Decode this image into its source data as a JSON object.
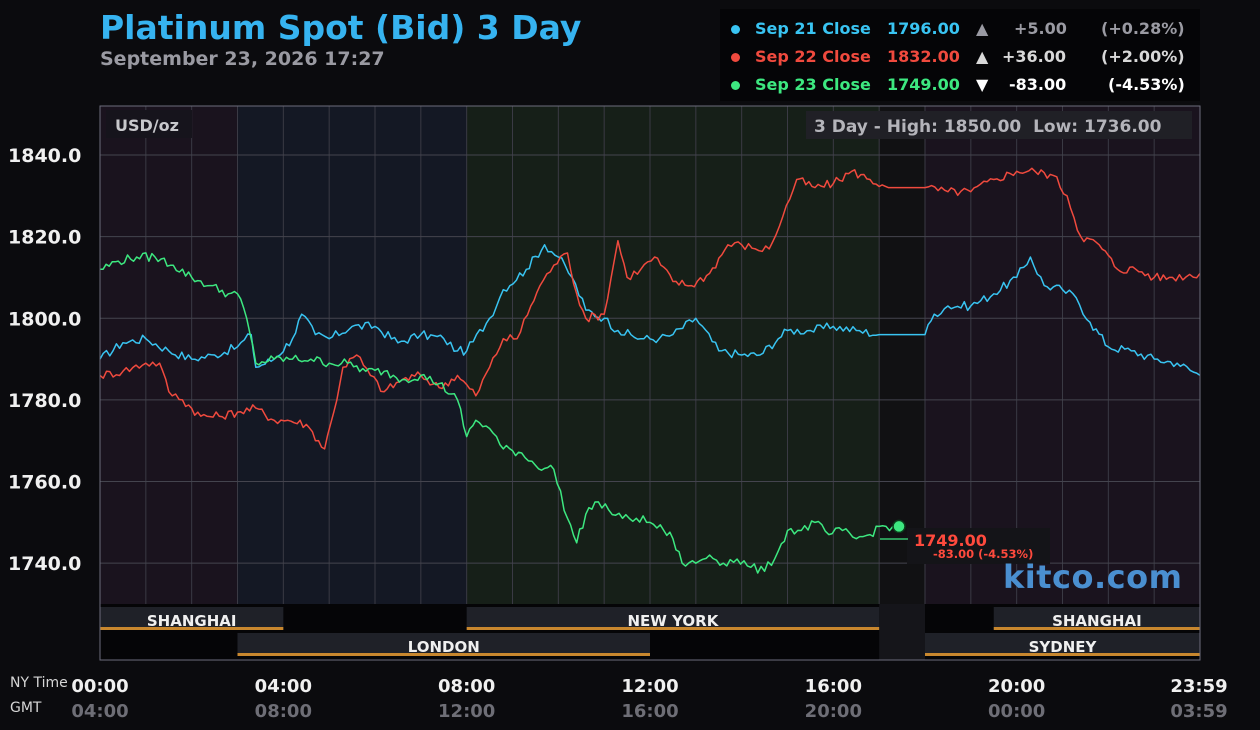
{
  "header": {
    "title": "Platinum Spot (Bid) 3 Day",
    "subtitle": "September 23, 2026 17:27"
  },
  "legend": [
    {
      "label": "Sep 21 Close",
      "value": "1796.00",
      "arrow": "▲",
      "change": "+5.00",
      "percent": "(+0.28%)",
      "color": "#39c4f2",
      "arrow_color": "#9a9aa2",
      "change_color": "#9a9aa2"
    },
    {
      "label": "Sep 22 Close",
      "value": "1832.00",
      "arrow": "▲",
      "change": "+36.00",
      "percent": "(+2.00%)",
      "color": "#f04a3e",
      "arrow_color": "#d8d8d8",
      "change_color": "#d8d8d8"
    },
    {
      "label": "Sep 23 Close",
      "value": "1749.00",
      "arrow": "▼",
      "change": "-83.00",
      "percent": "(-4.53%)",
      "color": "#3de880",
      "arrow_color": "#ffffff",
      "change_color": "#ffffff"
    }
  ],
  "unit_label": "USD/oz",
  "high_low": "3 Day - High: 1850.00  Low: 1736.00",
  "last_price": {
    "value": "1749.00",
    "change": "-83.00 (-4.53%)",
    "color": "#ff4a3d"
  },
  "sessions": [
    {
      "name": "SHANGHAI",
      "start": 0,
      "end": 4,
      "row": 1
    },
    {
      "name": "NEW YORK",
      "start": 8,
      "end": 17,
      "row": 1
    },
    {
      "name": "SHANGHAI",
      "start": 19.5,
      "end": 24,
      "row": 1
    },
    {
      "name": "LONDON",
      "start": 3,
      "end": 12,
      "row": 2
    },
    {
      "name": "SYDNEY",
      "start": 18,
      "end": 24,
      "row": 2
    }
  ],
  "time_axis": {
    "ny_label": "NY Time",
    "gmt_label": "GMT",
    "ny_ticks": [
      "00:00",
      "04:00",
      "08:00",
      "12:00",
      "16:00",
      "20:00",
      "23:59"
    ],
    "gmt_ticks": [
      "04:00",
      "08:00",
      "12:00",
      "16:00",
      "20:00",
      "00:00",
      "03:59"
    ]
  },
  "logo": "kitco.com",
  "chart_data": {
    "type": "line",
    "title": "Platinum Spot (Bid) 3 Day",
    "ylabel": "USD/oz",
    "xlabel": "NY Time",
    "ylim": [
      1730,
      1852
    ],
    "xlim": [
      0,
      24
    ],
    "y_ticks": [
      1740,
      1760,
      1780,
      1800,
      1820,
      1840
    ],
    "y_tick_labels": [
      "1740.0",
      "1760.0",
      "1780.0",
      "1800.0",
      "1820.0",
      "1840.0"
    ],
    "grid": true,
    "series": [
      {
        "name": "Sep 21",
        "color": "#39c4f2",
        "points": [
          [
            0,
            1790
          ],
          [
            0.5,
            1794
          ],
          [
            1,
            1795
          ],
          [
            1.5,
            1792
          ],
          [
            2,
            1790
          ],
          [
            2.5,
            1791
          ],
          [
            3,
            1793
          ],
          [
            3.3,
            1796
          ],
          [
            3.4,
            1788
          ],
          [
            3.8,
            1790
          ],
          [
            4.2,
            1795
          ],
          [
            4.4,
            1801
          ],
          [
            4.7,
            1796
          ],
          [
            5,
            1795
          ],
          [
            5.5,
            1798
          ],
          [
            6,
            1798
          ],
          [
            6.5,
            1794
          ],
          [
            7,
            1796
          ],
          [
            7.5,
            1795
          ],
          [
            7.8,
            1792
          ],
          [
            8,
            1792
          ],
          [
            8.5,
            1800
          ],
          [
            8.8,
            1807
          ],
          [
            9.3,
            1812
          ],
          [
            9.7,
            1818
          ],
          [
            10,
            1815
          ],
          [
            10.3,
            1810
          ],
          [
            10.6,
            1802
          ],
          [
            11,
            1800
          ],
          [
            11.3,
            1797
          ],
          [
            11.8,
            1795
          ],
          [
            12.2,
            1795
          ],
          [
            12.5,
            1796
          ],
          [
            13,
            1800
          ],
          [
            13.5,
            1792
          ],
          [
            14,
            1791
          ],
          [
            14.4,
            1791
          ],
          [
            14.8,
            1795
          ],
          [
            15,
            1797
          ],
          [
            15.5,
            1797
          ],
          [
            16,
            1798
          ],
          [
            16.5,
            1797
          ],
          [
            17,
            1796
          ],
          [
            18,
            1796
          ],
          [
            18.2,
            1801
          ],
          [
            18.5,
            1803
          ],
          [
            19,
            1803
          ],
          [
            19.5,
            1806
          ],
          [
            20,
            1810
          ],
          [
            20.3,
            1815
          ],
          [
            20.6,
            1808
          ],
          [
            21,
            1807
          ],
          [
            21.3,
            1805
          ],
          [
            21.6,
            1799
          ],
          [
            22,
            1793
          ],
          [
            22.5,
            1792
          ],
          [
            23,
            1790
          ],
          [
            23.5,
            1789
          ],
          [
            24,
            1786
          ]
        ]
      },
      {
        "name": "Sep 22",
        "color": "#f04a3e",
        "points": [
          [
            0,
            1786
          ],
          [
            0.5,
            1787
          ],
          [
            1,
            1789
          ],
          [
            1.3,
            1789
          ],
          [
            1.5,
            1782
          ],
          [
            1.8,
            1780
          ],
          [
            2.2,
            1776
          ],
          [
            2.6,
            1776
          ],
          [
            3,
            1777
          ],
          [
            3.4,
            1778
          ],
          [
            3.8,
            1775
          ],
          [
            4.1,
            1775
          ],
          [
            4.5,
            1774
          ],
          [
            4.9,
            1768
          ],
          [
            5.1,
            1777
          ],
          [
            5.3,
            1788
          ],
          [
            5.6,
            1791
          ],
          [
            5.9,
            1786
          ],
          [
            6.2,
            1782
          ],
          [
            6.6,
            1785
          ],
          [
            7,
            1786
          ],
          [
            7.4,
            1783
          ],
          [
            7.8,
            1786
          ],
          [
            8.2,
            1781
          ],
          [
            8.5,
            1788
          ],
          [
            8.8,
            1795
          ],
          [
            9.1,
            1795
          ],
          [
            9.4,
            1803
          ],
          [
            9.6,
            1808
          ],
          [
            9.9,
            1813
          ],
          [
            10.2,
            1816
          ],
          [
            10.4,
            1806
          ],
          [
            10.6,
            1800
          ],
          [
            11,
            1801
          ],
          [
            11.3,
            1819
          ],
          [
            11.5,
            1810
          ],
          [
            11.8,
            1812
          ],
          [
            12.1,
            1815
          ],
          [
            12.5,
            1809
          ],
          [
            12.9,
            1808
          ],
          [
            13.3,
            1811
          ],
          [
            13.7,
            1818
          ],
          [
            14,
            1818
          ],
          [
            14.3,
            1817
          ],
          [
            14.6,
            1817
          ],
          [
            14.9,
            1825
          ],
          [
            15.2,
            1834
          ],
          [
            15.6,
            1832
          ],
          [
            16,
            1833
          ],
          [
            16.4,
            1836
          ],
          [
            16.8,
            1834
          ],
          [
            17.2,
            1832
          ],
          [
            17.6,
            1832
          ],
          [
            18,
            1832
          ],
          [
            18.5,
            1831
          ],
          [
            19,
            1831
          ],
          [
            19.5,
            1834
          ],
          [
            20,
            1836
          ],
          [
            20.4,
            1836
          ],
          [
            20.8,
            1835
          ],
          [
            21.1,
            1830
          ],
          [
            21.4,
            1820
          ],
          [
            21.8,
            1818
          ],
          [
            22.2,
            1812
          ],
          [
            22.6,
            1812
          ],
          [
            23,
            1810
          ],
          [
            23.4,
            1810
          ],
          [
            24,
            1811
          ]
        ]
      },
      {
        "name": "Sep 23",
        "color": "#3de880",
        "points": [
          [
            0,
            1812
          ],
          [
            0.4,
            1814
          ],
          [
            0.8,
            1815
          ],
          [
            1.2,
            1815
          ],
          [
            1.6,
            1813
          ],
          [
            2,
            1810
          ],
          [
            2.4,
            1808
          ],
          [
            2.8,
            1806
          ],
          [
            3,
            1806
          ],
          [
            3.2,
            1800
          ],
          [
            3.4,
            1789
          ],
          [
            3.8,
            1790
          ],
          [
            4.2,
            1790
          ],
          [
            4.6,
            1790
          ],
          [
            5,
            1789
          ],
          [
            5.4,
            1789
          ],
          [
            5.8,
            1787
          ],
          [
            6.2,
            1787
          ],
          [
            6.6,
            1785
          ],
          [
            7,
            1786
          ],
          [
            7.4,
            1784
          ],
          [
            7.8,
            1780
          ],
          [
            8,
            1771
          ],
          [
            8.2,
            1775
          ],
          [
            8.5,
            1773
          ],
          [
            8.8,
            1768
          ],
          [
            9.2,
            1767
          ],
          [
            9.5,
            1764
          ],
          [
            9.9,
            1763
          ],
          [
            10.2,
            1751
          ],
          [
            10.4,
            1745
          ],
          [
            10.6,
            1752
          ],
          [
            10.8,
            1755
          ],
          [
            11.1,
            1753
          ],
          [
            11.4,
            1751
          ],
          [
            11.7,
            1751
          ],
          [
            12,
            1750
          ],
          [
            12.3,
            1748
          ],
          [
            12.5,
            1746
          ],
          [
            12.7,
            1740
          ],
          [
            13,
            1740
          ],
          [
            13.3,
            1742
          ],
          [
            13.6,
            1740
          ],
          [
            13.9,
            1741
          ],
          [
            14.2,
            1739
          ],
          [
            14.5,
            1738
          ],
          [
            14.8,
            1743
          ],
          [
            15,
            1748
          ],
          [
            15.3,
            1748
          ],
          [
            15.6,
            1750
          ],
          [
            15.9,
            1747
          ],
          [
            16.2,
            1748
          ],
          [
            16.5,
            1746
          ],
          [
            16.8,
            1747
          ],
          [
            17,
            1749
          ],
          [
            17.3,
            1749
          ]
        ]
      }
    ]
  }
}
